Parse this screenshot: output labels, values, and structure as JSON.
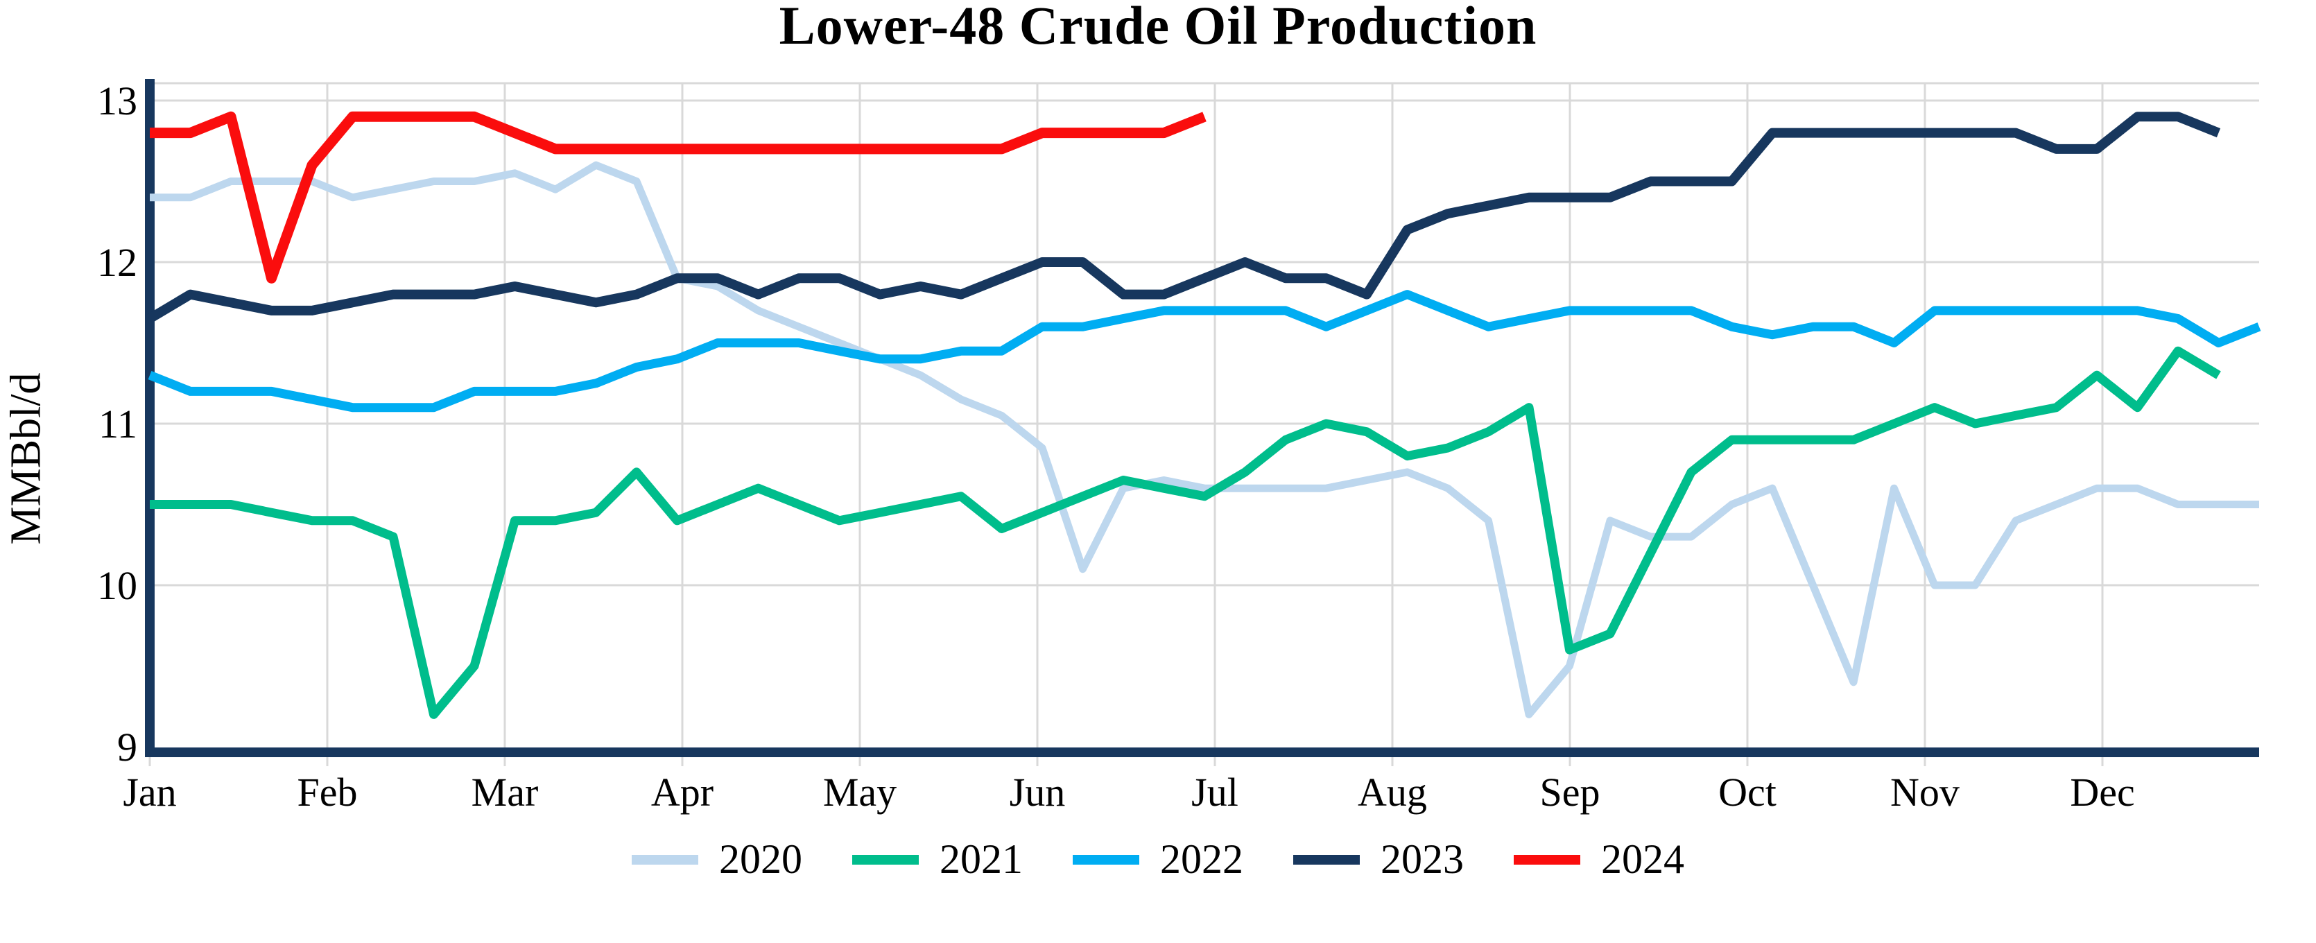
{
  "style": {
    "axis_color": "#17375E",
    "grid_color": "#D9D9D9",
    "text_color": "#000000",
    "background": "#FFFFFF"
  },
  "chart_data": {
    "type": "line",
    "title": "Lower-48 Crude Oil Production",
    "xlabel": "",
    "ylabel": "MMBbl/d",
    "ylim": [
      9,
      13
    ],
    "yticks": [
      13,
      12,
      11,
      10,
      9
    ],
    "xticklabels": [
      "Jan",
      "Feb",
      "Mar",
      "Apr",
      "May",
      "Jun",
      "Jul",
      "Aug",
      "Sep",
      "Oct",
      "Nov",
      "Dec"
    ],
    "grid": "on",
    "legend_position": "bottom-center",
    "x_unit": "weekly points, Jan through Dec",
    "series": [
      {
        "name": "2020",
        "color": "#BDD7EE",
        "stroke_width": 11,
        "values": [
          12.4,
          12.4,
          12.5,
          12.5,
          12.5,
          12.4,
          12.45,
          12.5,
          12.5,
          12.55,
          12.45,
          12.6,
          12.5,
          11.9,
          11.85,
          11.7,
          11.6,
          11.5,
          11.4,
          11.3,
          11.15,
          11.05,
          10.85,
          10.1,
          10.6,
          10.65,
          10.6,
          10.6,
          10.6,
          10.6,
          10.65,
          10.7,
          10.6,
          10.4,
          9.2,
          9.5,
          10.4,
          10.3,
          10.3,
          10.5,
          10.6,
          10.0,
          9.4,
          10.6,
          10.0,
          10.0,
          10.4,
          10.5,
          10.6,
          10.6,
          10.5,
          10.5,
          10.5
        ]
      },
      {
        "name": "2021",
        "color": "#00BD8C",
        "stroke_width": 13,
        "values": [
          10.5,
          10.5,
          10.5,
          10.45,
          10.4,
          10.4,
          10.3,
          9.2,
          9.5,
          10.4,
          10.4,
          10.45,
          10.7,
          10.4,
          10.5,
          10.6,
          10.5,
          10.4,
          10.45,
          10.5,
          10.55,
          10.35,
          10.45,
          10.55,
          10.65,
          10.6,
          10.55,
          10.7,
          10.9,
          11.0,
          10.95,
          10.8,
          10.85,
          10.95,
          11.1,
          9.6,
          9.7,
          10.2,
          10.7,
          10.9,
          10.9,
          10.9,
          10.9,
          11.0,
          11.1,
          11.0,
          11.05,
          11.1,
          11.3,
          11.1,
          11.45,
          11.3
        ]
      },
      {
        "name": "2022",
        "color": "#00ADF2",
        "stroke_width": 13,
        "values": [
          11.3,
          11.2,
          11.2,
          11.2,
          11.15,
          11.1,
          11.1,
          11.1,
          11.2,
          11.2,
          11.2,
          11.25,
          11.35,
          11.4,
          11.5,
          11.5,
          11.5,
          11.45,
          11.4,
          11.4,
          11.45,
          11.45,
          11.6,
          11.6,
          11.65,
          11.7,
          11.7,
          11.7,
          11.7,
          11.6,
          11.7,
          11.8,
          11.7,
          11.6,
          11.65,
          11.7,
          11.7,
          11.7,
          11.7,
          11.6,
          11.55,
          11.6,
          11.6,
          11.5,
          11.7,
          11.7,
          11.7,
          11.7,
          11.7,
          11.7,
          11.65,
          11.5,
          11.6
        ]
      },
      {
        "name": "2023",
        "color": "#17375E",
        "stroke_width": 14,
        "values": [
          11.65,
          11.8,
          11.75,
          11.7,
          11.7,
          11.75,
          11.8,
          11.8,
          11.8,
          11.85,
          11.8,
          11.75,
          11.8,
          11.9,
          11.9,
          11.8,
          11.9,
          11.9,
          11.8,
          11.85,
          11.8,
          11.9,
          12.0,
          12.0,
          11.8,
          11.8,
          11.9,
          12.0,
          11.9,
          11.9,
          11.8,
          12.2,
          12.3,
          12.35,
          12.4,
          12.4,
          12.4,
          12.5,
          12.5,
          12.5,
          12.8,
          12.8,
          12.8,
          12.8,
          12.8,
          12.8,
          12.8,
          12.7,
          12.7,
          12.9,
          12.9,
          12.8
        ]
      },
      {
        "name": "2024",
        "color": "#FA0D0D",
        "stroke_width": 15,
        "values": [
          12.8,
          12.8,
          12.9,
          11.9,
          12.6,
          12.9,
          12.9,
          12.9,
          12.9,
          12.8,
          12.7,
          12.7,
          12.7,
          12.7,
          12.7,
          12.7,
          12.7,
          12.7,
          12.7,
          12.7,
          12.7,
          12.7,
          12.8,
          12.8,
          12.8,
          12.8,
          12.9
        ]
      }
    ]
  }
}
